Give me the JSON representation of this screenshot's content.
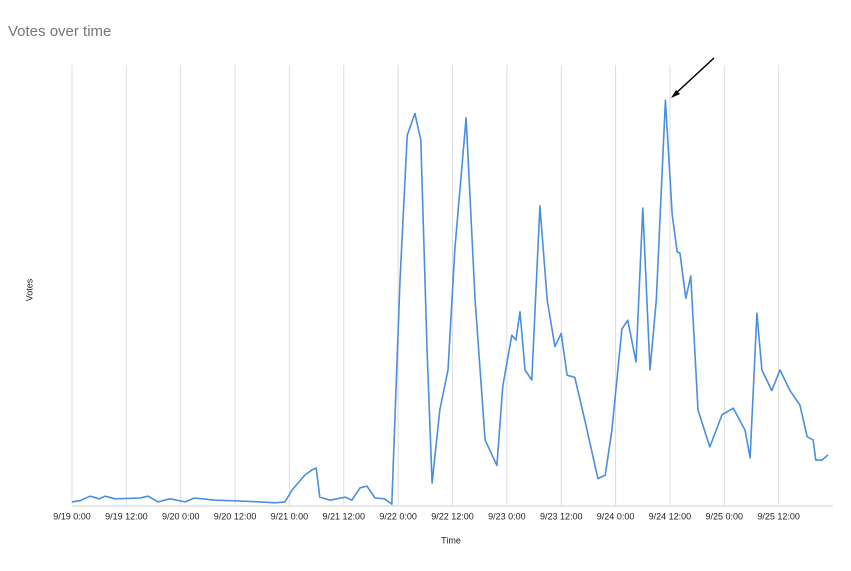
{
  "chart_data": {
    "type": "line",
    "title": "Votes over time",
    "x_label": "Time",
    "y_label": "Votes",
    "x": [
      0,
      1.8,
      4,
      6,
      7.3,
      9.5,
      15,
      16.8,
      19,
      21.6,
      25,
      27,
      31.6,
      37,
      41.5,
      44.8,
      47,
      48.6,
      51.4,
      53,
      53.9,
      54.7,
      57,
      60.3,
      61.8,
      63.6,
      65.1,
      66.9,
      69,
      70.6,
      72.4,
      74,
      75.7,
      77,
      78.4,
      79.5,
      81.2,
      83,
      84.5,
      87,
      89,
      91.2,
      93.8,
      95.1,
      97.1,
      98,
      98.9,
      100,
      101.5,
      103.3,
      104.9,
      106.6,
      108,
      109.3,
      111,
      113.2,
      116.1,
      117.7,
      119.2,
      121.4,
      122.7,
      124.5,
      126,
      127.6,
      129,
      131,
      132.5,
      133.6,
      134.2,
      135.5,
      136.6,
      138.2,
      140.8,
      143.5,
      146,
      148.6,
      149.7,
      151.2,
      152.3,
      154.5,
      156.3,
      158.5,
      160.7,
      162.3,
      163.6,
      164.2,
      165.6,
      166.9
    ],
    "series": [
      {
        "name": "Votes",
        "color": "#4a8ee0",
        "values": [
          0.7,
          1,
          2,
          1.4,
          2,
          1.4,
          1.6,
          2,
          0.7,
          1.4,
          0.7,
          1.6,
          1.1,
          0.9,
          0.7,
          0.5,
          0.7,
          3.4,
          6.8,
          8,
          8.4,
          1.8,
          1.1,
          1.8,
          1.1,
          3.9,
          4.3,
          1.6,
          1.4,
          0.2,
          51,
          84,
          89,
          83,
          35,
          5,
          21.6,
          30.7,
          58,
          88,
          46.6,
          14.8,
          9,
          27,
          38.6,
          37.5,
          43.9,
          30.7,
          28.4,
          68,
          46.6,
          36,
          39,
          29.5,
          29,
          19.3,
          6,
          6.8,
          17,
          40,
          42,
          32.5,
          67.5,
          30.7,
          46.6,
          92,
          66,
          57.5,
          57.3,
          47,
          52,
          21.6,
          13.2,
          20.5,
          22,
          17,
          10.7,
          43.6,
          30.7,
          26,
          30.7,
          26,
          22.7,
          15.5,
          14.8,
          10.2,
          10.2,
          11.4
        ]
      }
    ],
    "xlim": [
      0,
      168
    ],
    "xticks": [
      {
        "value": 0,
        "label": "9/19 0:00"
      },
      {
        "value": 12,
        "label": "9/19 12:00"
      },
      {
        "value": 24,
        "label": "9/20 0:00"
      },
      {
        "value": 36,
        "label": "9/20 12:00"
      },
      {
        "value": 48,
        "label": "9/21 0:00"
      },
      {
        "value": 60,
        "label": "9/21 12:00"
      },
      {
        "value": 72,
        "label": "9/22 0:00"
      },
      {
        "value": 84,
        "label": "9/22 12:00"
      },
      {
        "value": 96,
        "label": "9/23 0:00"
      },
      {
        "value": 108,
        "label": "9/23 12:00"
      },
      {
        "value": 120,
        "label": "9/24 0:00"
      },
      {
        "value": 132,
        "label": "9/24 12:00"
      },
      {
        "value": 144,
        "label": "9/25 0:00"
      },
      {
        "value": 156,
        "label": "9/25 12:00"
      }
    ],
    "ylim": [
      0,
      100
    ],
    "grid": true
  }
}
